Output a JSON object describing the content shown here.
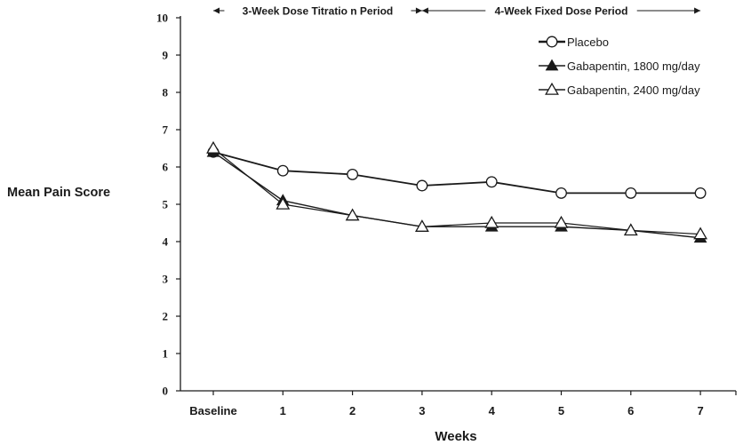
{
  "chart_data": {
    "type": "line",
    "xlabel": "Weeks",
    "ylabel": "Mean Pain Score",
    "categories": [
      "Baseline",
      "1",
      "2",
      "3",
      "4",
      "5",
      "6",
      "7"
    ],
    "ylim": [
      0,
      10
    ],
    "yticks": [
      "0",
      "1",
      "2",
      "3",
      "4",
      "5",
      "6",
      "7",
      "8",
      "9",
      "10"
    ],
    "grid": false,
    "legend_position": "top-right",
    "periods": [
      {
        "label": "3-Week Dose Titratio  n Period",
        "from_index": 0,
        "to_index": 3
      },
      {
        "label": "4-Week Fixed Dose Period",
        "from_index": 3,
        "to_index": 7
      }
    ],
    "series": [
      {
        "name": "Placebo",
        "marker": "open-circle",
        "values": [
          6.4,
          5.9,
          5.8,
          5.5,
          5.6,
          5.3,
          5.3,
          5.3
        ]
      },
      {
        "name": "Gabapentin, 1800 mg/day",
        "marker": "filled-triangle",
        "values": [
          6.4,
          5.1,
          4.7,
          4.4,
          4.4,
          4.4,
          4.3,
          4.1
        ]
      },
      {
        "name": "Gabapentin, 2400 mg/day",
        "marker": "open-triangle",
        "values": [
          6.5,
          5.0,
          4.7,
          4.4,
          4.5,
          4.5,
          4.3,
          4.2
        ]
      }
    ],
    "colors": {
      "line": "#1a1a1a",
      "background": "#ffffff"
    }
  }
}
